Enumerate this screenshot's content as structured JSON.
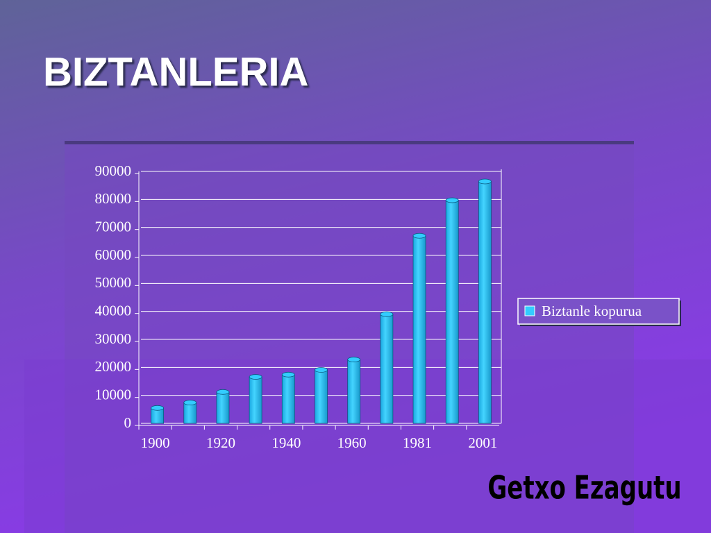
{
  "title": "BIZTANLERIA",
  "footer": "Getxo Ezagutu",
  "chart_data": {
    "type": "bar",
    "categories": [
      "1900",
      null,
      "1920",
      null,
      "1940",
      null,
      "1960",
      null,
      "1981",
      null,
      "2001"
    ],
    "series": [
      {
        "name": "Biztanle kopurua",
        "color": "#33ccff",
        "values": [
          5500,
          7400,
          11200,
          16600,
          17400,
          19100,
          22800,
          39000,
          67000,
          79700,
          86400
        ]
      }
    ],
    "ylim": [
      0,
      90000
    ],
    "yticks": [
      0,
      10000,
      20000,
      30000,
      40000,
      50000,
      60000,
      70000,
      80000,
      90000
    ],
    "grid": true,
    "legend": "right"
  }
}
